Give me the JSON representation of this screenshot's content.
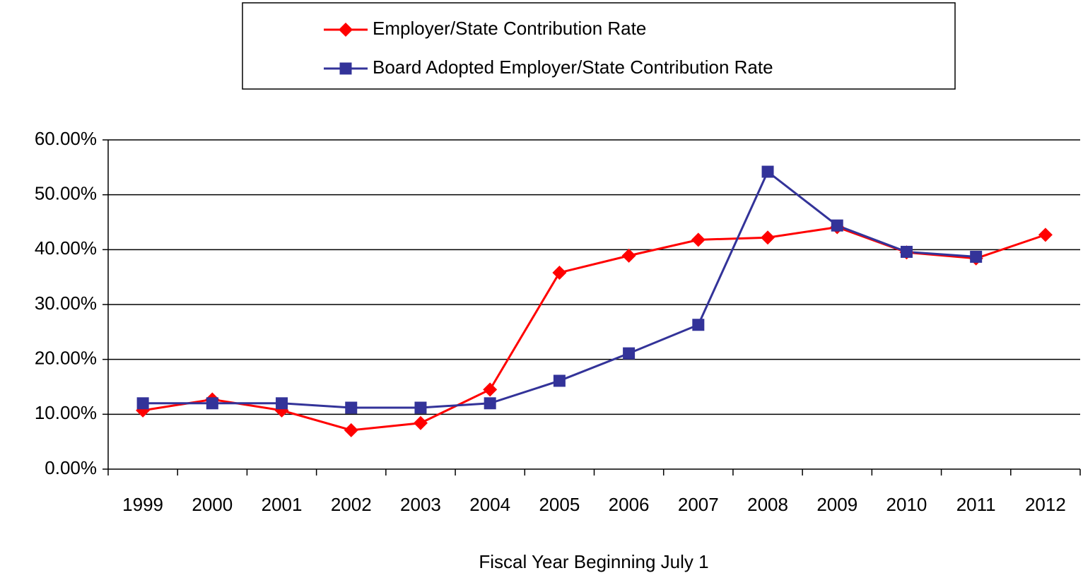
{
  "chart_data": {
    "type": "line",
    "x_label": "Fiscal Year Beginning July 1",
    "categories": [
      "1999",
      "2000",
      "2001",
      "2002",
      "2003",
      "2004",
      "2005",
      "2006",
      "2007",
      "2008",
      "2009",
      "2010",
      "2011",
      "2012"
    ],
    "series": [
      {
        "name": "Employer/State Contribution Rate",
        "color": "#ff0000",
        "marker": "diamond",
        "values": [
          10.7,
          12.7,
          10.7,
          7.1,
          8.4,
          14.5,
          35.8,
          38.9,
          41.8,
          42.2,
          44.1,
          39.5,
          38.4,
          42.7
        ]
      },
      {
        "name": "Board Adopted Employer/State Contribution Rate",
        "color": "#333399",
        "marker": "square",
        "values": [
          12.0,
          12.0,
          12.0,
          11.2,
          11.2,
          12.0,
          16.1,
          21.1,
          26.3,
          54.2,
          44.4,
          39.6,
          38.7,
          null
        ]
      }
    ],
    "ylim": [
      0,
      60
    ],
    "yticks": [
      {
        "value": 0,
        "label": "0.00%"
      },
      {
        "value": 10,
        "label": "10.00%"
      },
      {
        "value": 20,
        "label": "20.00%"
      },
      {
        "value": 30,
        "label": "30.00%"
      },
      {
        "value": 40,
        "label": "40.00%"
      },
      {
        "value": 50,
        "label": "50.00%"
      },
      {
        "value": 60,
        "label": "60.00%"
      }
    ],
    "grid": true
  }
}
